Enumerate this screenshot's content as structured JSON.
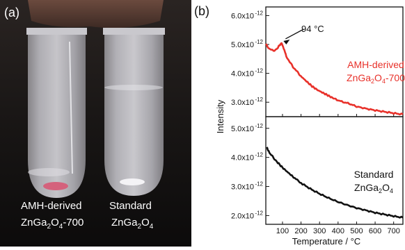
{
  "photo_panel": {
    "label": "(a)",
    "tube_left_caption": [
      "AMH-derived",
      "ZnGa",
      "2",
      "O",
      "4",
      "-700"
    ],
    "tube_right_caption": [
      "Standard",
      "ZnGa",
      "2",
      "O",
      "4"
    ]
  },
  "chart_panel": {
    "label": "(b)",
    "ylabel": "Intensity",
    "xlabel": "Temperature / °C",
    "colors": {
      "top": "#e8312a",
      "bottom": "#111111"
    }
  },
  "chart_data": [
    {
      "type": "line",
      "name": "top-panel",
      "series_label": [
        "AMH-derived",
        "ZnGa",
        "2",
        "O",
        "4",
        "-700"
      ],
      "annotation": "94 °C",
      "annotation_x": 94,
      "xlim": [
        10,
        750
      ],
      "ylim": [
        2.5e-12,
        6.3e-12
      ],
      "yticks": [
        3e-12,
        4e-12,
        5e-12,
        6e-12
      ],
      "ytick_labels": [
        "3.0x10",
        "4.0x10",
        "5.0x10",
        "6.0x10"
      ],
      "ytick_exp": "-12",
      "x": [
        10,
        30,
        50,
        70,
        85,
        94,
        105,
        120,
        140,
        160,
        180,
        200,
        230,
        260,
        290,
        320,
        350,
        380,
        420,
        460,
        500,
        550,
        600,
        650,
        700,
        750
      ],
      "y": [
        5e-12,
        4.85e-12,
        4.78e-12,
        4.85e-12,
        4.98e-12,
        5.05e-12,
        4.9e-12,
        4.6e-12,
        4.38e-12,
        4.2e-12,
        4.05e-12,
        3.9e-12,
        3.72e-12,
        3.55e-12,
        3.42e-12,
        3.32e-12,
        3.22e-12,
        3.12e-12,
        3.02e-12,
        2.95e-12,
        2.85e-12,
        2.78e-12,
        2.72e-12,
        2.67e-12,
        2.62e-12,
        2.58e-12
      ]
    },
    {
      "type": "line",
      "name": "bottom-panel",
      "series_label": [
        "Standard",
        "ZnGa",
        "2",
        "O",
        "4"
      ],
      "xlim": [
        10,
        750
      ],
      "ylim": [
        1.7e-12,
        5.4e-12
      ],
      "yticks": [
        2e-12,
        3e-12,
        4e-12,
        5e-12
      ],
      "ytick_labels": [
        "2.0x10",
        "3.0x10",
        "4.0x10",
        "5.0x10"
      ],
      "ytick_exp": "-12",
      "xticks": [
        100,
        200,
        300,
        400,
        500,
        600,
        700
      ],
      "xtick_labels": [
        "100",
        "200",
        "300",
        "400",
        "500",
        "600",
        "700"
      ],
      "x": [
        15,
        30,
        50,
        70,
        100,
        130,
        160,
        200,
        250,
        300,
        350,
        400,
        450,
        500,
        550,
        600,
        650,
        700,
        750
      ],
      "y": [
        4.35e-12,
        4.15e-12,
        4e-12,
        3.85e-12,
        3.65e-12,
        3.48e-12,
        3.32e-12,
        3.12e-12,
        2.92e-12,
        2.75e-12,
        2.6e-12,
        2.47e-12,
        2.36e-12,
        2.26e-12,
        2.18e-12,
        2.1e-12,
        2.04e-12,
        1.98e-12,
        1.93e-12
      ]
    }
  ]
}
